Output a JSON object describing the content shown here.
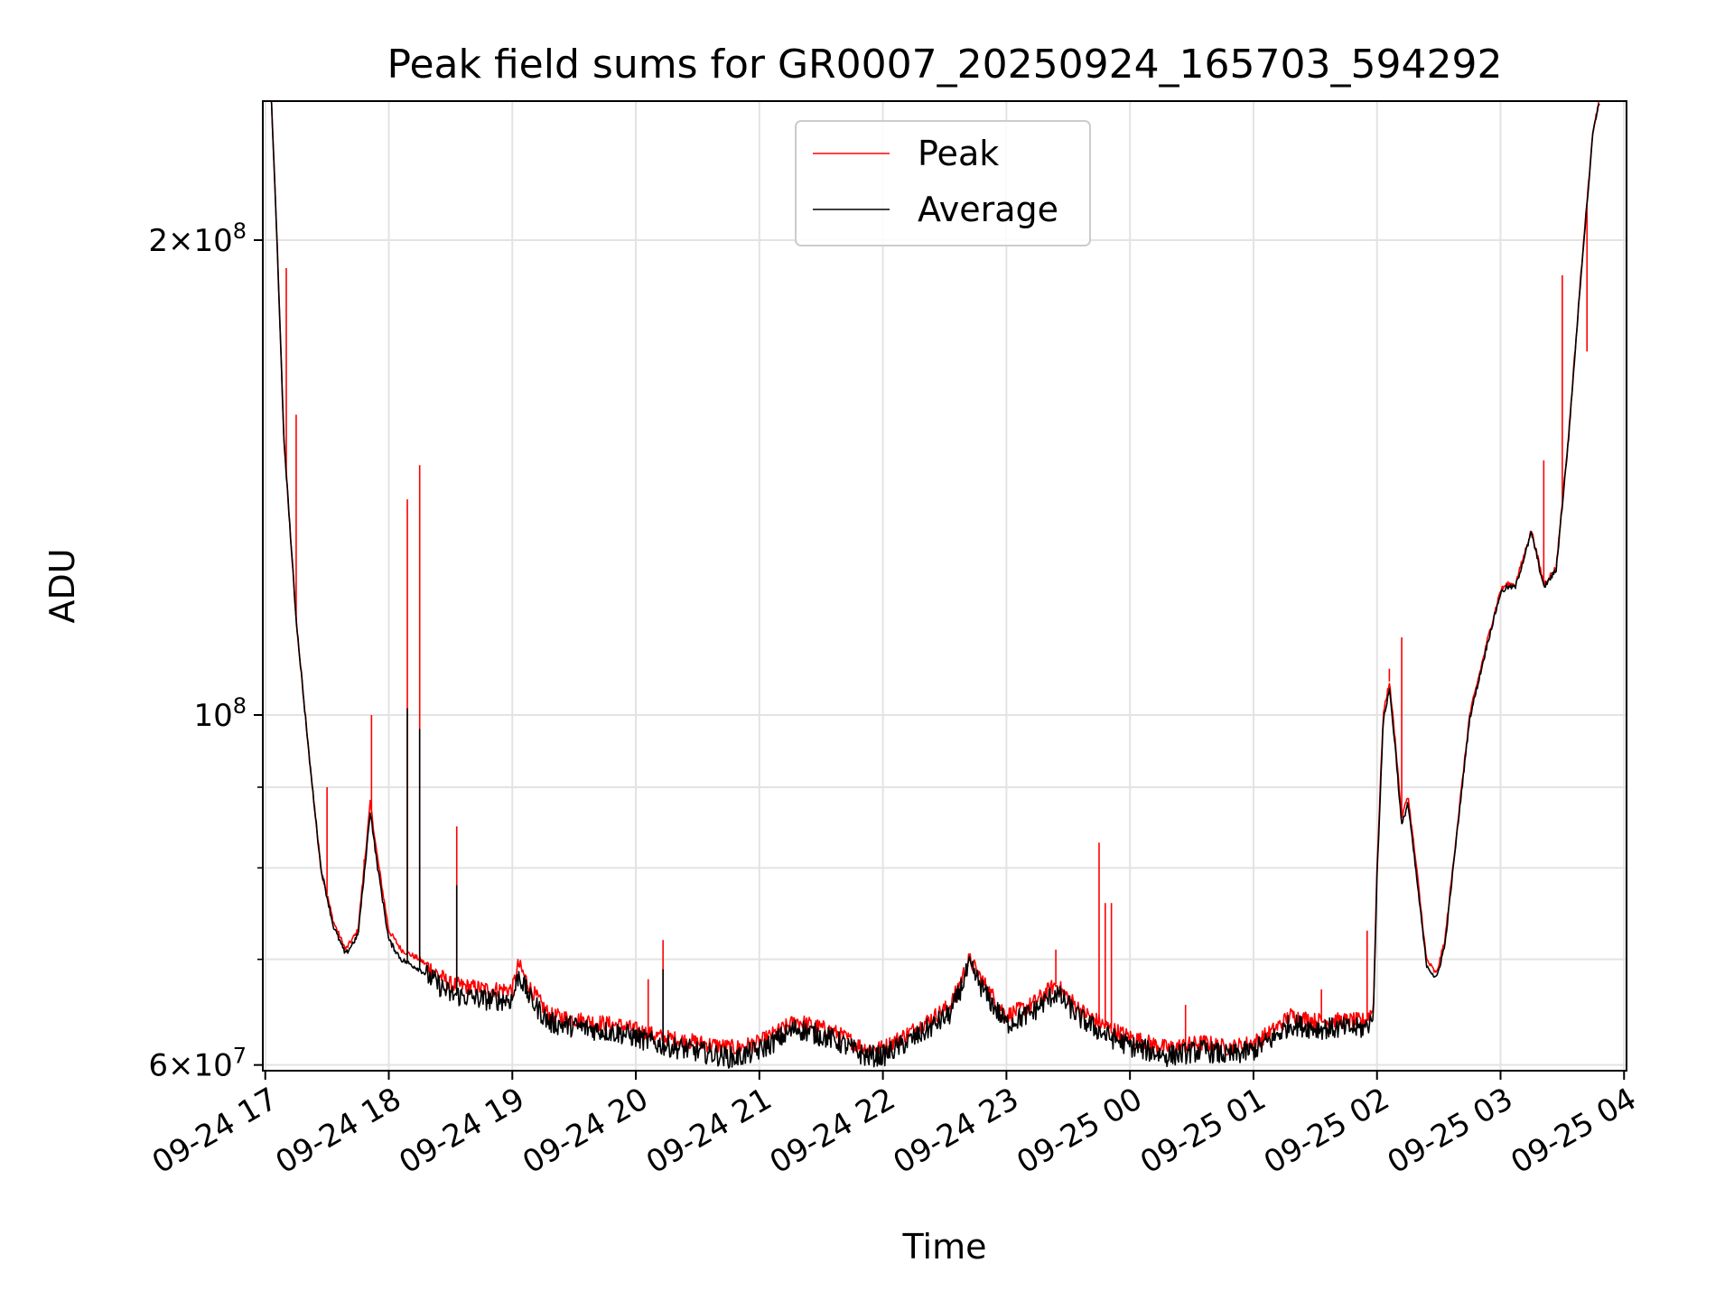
{
  "chart_data": {
    "type": "line",
    "title": "Peak field sums for GR0007_20250924_165703_594292",
    "xlabel": "Time",
    "ylabel": "ADU",
    "yscale": "log",
    "ylim": [
      59500000,
      245000000
    ],
    "xlim_hours": [
      16.98,
      28.02
    ],
    "grid": true,
    "legend_position": "top-center",
    "x_ticks": [
      {
        "hour": 17,
        "label": "09-24 17"
      },
      {
        "hour": 18,
        "label": "09-24 18"
      },
      {
        "hour": 19,
        "label": "09-24 19"
      },
      {
        "hour": 20,
        "label": "09-24 20"
      },
      {
        "hour": 21,
        "label": "09-24 21"
      },
      {
        "hour": 22,
        "label": "09-24 22"
      },
      {
        "hour": 23,
        "label": "09-24 23"
      },
      {
        "hour": 24,
        "label": "09-25 00"
      },
      {
        "hour": 25,
        "label": "09-25 01"
      },
      {
        "hour": 26,
        "label": "09-25 02"
      },
      {
        "hour": 27,
        "label": "09-25 03"
      },
      {
        "hour": 28,
        "label": "09-25 04"
      }
    ],
    "y_ticks": [
      {
        "value": 60000000,
        "mantissa": "6",
        "exponent": "7"
      },
      {
        "value": 100000000,
        "mantissa": "",
        "exponent": "8"
      },
      {
        "value": 200000000,
        "mantissa": "2",
        "exponent": "8"
      }
    ],
    "y_minor_ticks": [
      70000000,
      80000000,
      90000000
    ],
    "series": [
      {
        "name": "Peak",
        "color": "#ff0000",
        "baseline": [
          [
            17.05,
            245000000
          ],
          [
            17.1,
            195000000
          ],
          [
            17.15,
            150000000
          ],
          [
            17.25,
            115000000
          ],
          [
            17.35,
            95000000
          ],
          [
            17.45,
            80000000
          ],
          [
            17.55,
            74000000
          ],
          [
            17.65,
            71000000
          ],
          [
            17.75,
            73000000
          ],
          [
            17.8,
            80000000
          ],
          [
            17.85,
            88000000
          ],
          [
            17.9,
            82000000
          ],
          [
            18.0,
            73000000
          ],
          [
            18.1,
            71000000
          ],
          [
            18.25,
            70000000
          ],
          [
            18.5,
            67500000
          ],
          [
            18.8,
            67000000
          ],
          [
            19.0,
            67000000
          ],
          [
            19.05,
            69500000
          ],
          [
            19.15,
            67000000
          ],
          [
            19.3,
            64500000
          ],
          [
            19.6,
            64000000
          ],
          [
            19.9,
            63500000
          ],
          [
            20.2,
            62500000
          ],
          [
            20.5,
            62000000
          ],
          [
            20.8,
            61500000
          ],
          [
            21.0,
            62000000
          ],
          [
            21.3,
            64000000
          ],
          [
            21.6,
            63000000
          ],
          [
            21.85,
            61500000
          ],
          [
            22.0,
            61500000
          ],
          [
            22.3,
            63500000
          ],
          [
            22.55,
            65500000
          ],
          [
            22.7,
            70000000
          ],
          [
            22.85,
            67000000
          ],
          [
            23.0,
            64500000
          ],
          [
            23.2,
            65500000
          ],
          [
            23.4,
            67500000
          ],
          [
            23.6,
            65000000
          ],
          [
            23.8,
            63500000
          ],
          [
            24.0,
            62500000
          ],
          [
            24.3,
            61500000
          ],
          [
            24.6,
            62000000
          ],
          [
            24.8,
            61500000
          ],
          [
            25.0,
            62000000
          ],
          [
            25.15,
            63000000
          ],
          [
            25.3,
            64500000
          ],
          [
            25.5,
            64000000
          ],
          [
            25.7,
            64000000
          ],
          [
            25.9,
            64000000
          ],
          [
            25.97,
            65000000
          ],
          [
            26.0,
            80000000
          ],
          [
            26.05,
            100000000
          ],
          [
            26.1,
            105000000
          ],
          [
            26.15,
            96000000
          ],
          [
            26.2,
            86000000
          ],
          [
            26.25,
            89000000
          ],
          [
            26.32,
            80000000
          ],
          [
            26.4,
            70000000
          ],
          [
            26.48,
            68500000
          ],
          [
            26.55,
            72000000
          ],
          [
            26.65,
            85000000
          ],
          [
            26.75,
            100000000
          ],
          [
            26.9,
            112000000
          ],
          [
            27.0,
            120000000
          ],
          [
            27.05,
            121000000
          ],
          [
            27.12,
            121000000
          ],
          [
            27.25,
            131000000
          ],
          [
            27.3,
            126000000
          ],
          [
            27.35,
            121000000
          ],
          [
            27.45,
            124000000
          ],
          [
            27.55,
            150000000
          ],
          [
            27.65,
            190000000
          ],
          [
            27.75,
            235000000
          ],
          [
            27.8,
            245000000
          ]
        ],
        "spikes": [
          [
            17.17,
            192000000
          ],
          [
            17.25,
            155000000
          ],
          [
            17.5,
            90000000
          ],
          [
            17.8,
            81000000
          ],
          [
            17.86,
            100000000
          ],
          [
            18.15,
            137000000
          ],
          [
            18.25,
            144000000
          ],
          [
            18.55,
            85000000
          ],
          [
            20.1,
            68000000
          ],
          [
            20.22,
            72000000
          ],
          [
            23.4,
            71000000
          ],
          [
            23.75,
            83000000
          ],
          [
            23.8,
            76000000
          ],
          [
            23.85,
            76000000
          ],
          [
            24.45,
            65500000
          ],
          [
            25.55,
            67000000
          ],
          [
            25.92,
            73000000
          ],
          [
            26.1,
            107000000
          ],
          [
            26.2,
            112000000
          ],
          [
            27.35,
            145000000
          ],
          [
            27.5,
            190000000
          ],
          [
            27.7,
            170000000
          ]
        ]
      },
      {
        "name": "Average",
        "color": "#000000",
        "baseline": [
          [
            17.05,
            245000000
          ],
          [
            17.1,
            195000000
          ],
          [
            17.15,
            150000000
          ],
          [
            17.25,
            115000000
          ],
          [
            17.35,
            95000000
          ],
          [
            17.45,
            80000000
          ],
          [
            17.55,
            73500000
          ],
          [
            17.65,
            70500000
          ],
          [
            17.75,
            72500000
          ],
          [
            17.8,
            79000000
          ],
          [
            17.85,
            87000000
          ],
          [
            17.9,
            81000000
          ],
          [
            18.0,
            72000000
          ],
          [
            18.1,
            70000000
          ],
          [
            18.25,
            69000000
          ],
          [
            18.5,
            66500000
          ],
          [
            18.8,
            66000000
          ],
          [
            19.0,
            66000000
          ],
          [
            19.05,
            68500000
          ],
          [
            19.15,
            66000000
          ],
          [
            19.3,
            63800000
          ],
          [
            19.6,
            63300000
          ],
          [
            19.9,
            62800000
          ],
          [
            20.2,
            61800000
          ],
          [
            20.5,
            61200000
          ],
          [
            20.8,
            60600000
          ],
          [
            21.0,
            61300000
          ],
          [
            21.3,
            63300000
          ],
          [
            21.6,
            62300000
          ],
          [
            21.85,
            60800000
          ],
          [
            22.0,
            60800000
          ],
          [
            22.3,
            62700000
          ],
          [
            22.55,
            64700000
          ],
          [
            22.7,
            69300000
          ],
          [
            22.85,
            66200000
          ],
          [
            23.0,
            63700000
          ],
          [
            23.2,
            64700000
          ],
          [
            23.4,
            66700000
          ],
          [
            23.6,
            64200000
          ],
          [
            23.8,
            62700000
          ],
          [
            24.0,
            61700000
          ],
          [
            24.3,
            60800000
          ],
          [
            24.6,
            61300000
          ],
          [
            24.8,
            60800000
          ],
          [
            25.0,
            61300000
          ],
          [
            25.15,
            62300000
          ],
          [
            25.3,
            63700000
          ],
          [
            25.5,
            63300000
          ],
          [
            25.7,
            63300000
          ],
          [
            25.9,
            63300000
          ],
          [
            25.97,
            64300000
          ],
          [
            26.0,
            79000000
          ],
          [
            26.05,
            99000000
          ],
          [
            26.1,
            104000000
          ],
          [
            26.15,
            95000000
          ],
          [
            26.2,
            85000000
          ],
          [
            26.25,
            88000000
          ],
          [
            26.32,
            79000000
          ],
          [
            26.4,
            69500000
          ],
          [
            26.48,
            68000000
          ],
          [
            26.55,
            71500000
          ],
          [
            26.65,
            84500000
          ],
          [
            26.75,
            99500000
          ],
          [
            26.9,
            111500000
          ],
          [
            27.0,
            119500000
          ],
          [
            27.05,
            120500000
          ],
          [
            27.12,
            120500000
          ],
          [
            27.25,
            130500000
          ],
          [
            27.3,
            125500000
          ],
          [
            27.35,
            120500000
          ],
          [
            27.45,
            123500000
          ],
          [
            27.55,
            149500000
          ],
          [
            27.65,
            189500000
          ],
          [
            27.75,
            235000000
          ],
          [
            27.8,
            245000000
          ]
        ],
        "spikes": [
          [
            18.15,
            101000000
          ],
          [
            18.25,
            98000000
          ],
          [
            18.55,
            78000000
          ],
          [
            20.22,
            69000000
          ]
        ]
      }
    ]
  }
}
